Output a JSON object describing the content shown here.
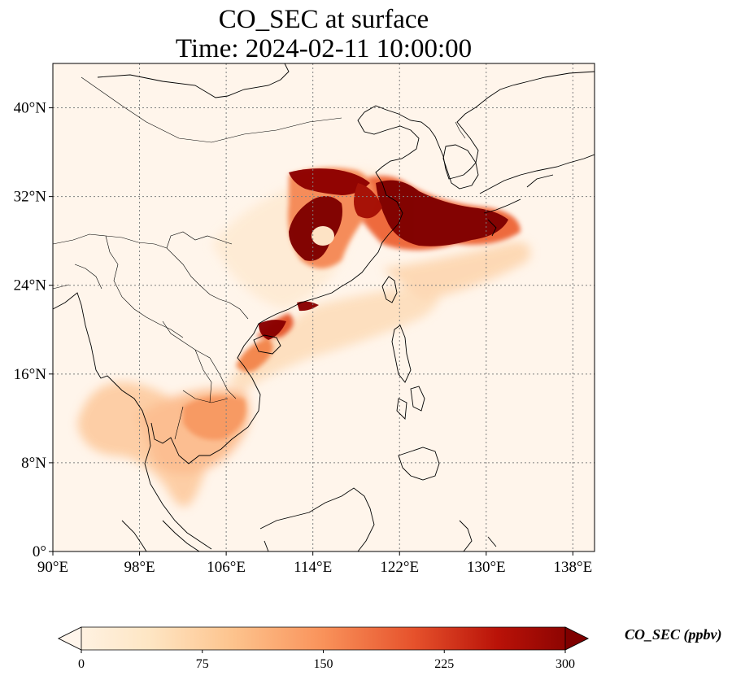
{
  "title": {
    "line1": "CO_SEC at surface",
    "line2": "Time: 2024-02-11 10:00:00"
  },
  "map": {
    "projection": "PlateCarree",
    "lon_range": [
      90,
      140
    ],
    "lat_range": [
      0,
      44
    ],
    "background_color": "#fff5eb",
    "coastline_color": "#000000",
    "gridlines": "dotted grey",
    "lon_ticks": [
      {
        "value": 90,
        "label": "90°E"
      },
      {
        "value": 98,
        "label": "98°E"
      },
      {
        "value": 106,
        "label": "106°E"
      },
      {
        "value": 114,
        "label": "114°E"
      },
      {
        "value": 122,
        "label": "122°E"
      },
      {
        "value": 130,
        "label": "130°E"
      },
      {
        "value": 138,
        "label": "138°E"
      }
    ],
    "lat_ticks": [
      {
        "value": 0,
        "label": "0°"
      },
      {
        "value": 8,
        "label": "8°N"
      },
      {
        "value": 16,
        "label": "16°N"
      },
      {
        "value": 24,
        "label": "24°N"
      },
      {
        "value": 32,
        "label": "32°N"
      },
      {
        "value": 40,
        "label": "40°N"
      }
    ]
  },
  "colorbar": {
    "label": "CO_SEC (ppbv)",
    "colormap": "OrRd",
    "extend": "both",
    "range": [
      0,
      300
    ],
    "ticks": [
      {
        "value": 0,
        "label": "0"
      },
      {
        "value": 75,
        "label": "75"
      },
      {
        "value": 150,
        "label": "150"
      },
      {
        "value": 225,
        "label": "225"
      },
      {
        "value": 300,
        "label": "300"
      }
    ],
    "colors": [
      "#fff5eb",
      "#fdd9a9",
      "#fdb27b",
      "#f87c4e",
      "#dd3f21",
      "#b10c03",
      "#7f0000"
    ]
  }
}
